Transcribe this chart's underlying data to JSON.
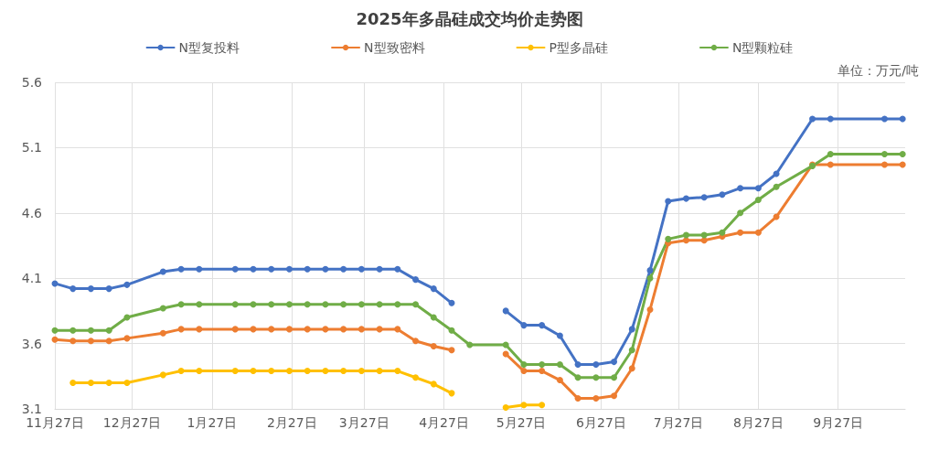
{
  "chart_data": {
    "type": "line",
    "title": "2025年多晶硅成交均价走势图",
    "ylabel": "单位：万元/吨",
    "x": [
      "2024-11-27",
      "2024-12-04",
      "2024-12-11",
      "2024-12-18",
      "2024-12-25",
      "2025-01-08",
      "2025-01-15",
      "2025-01-22",
      "2025-02-05",
      "2025-02-12",
      "2025-02-19",
      "2025-02-26",
      "2025-03-05",
      "2025-03-12",
      "2025-03-19",
      "2025-03-26",
      "2025-04-02",
      "2025-04-09",
      "2025-04-16",
      "2025-04-23",
      "2025-04-30",
      "2025-05-07",
      "2025-05-21",
      "2025-05-28",
      "2025-06-04",
      "2025-06-11",
      "2025-06-18",
      "2025-06-25",
      "2025-07-02",
      "2025-07-09",
      "2025-07-16",
      "2025-07-23",
      "2025-07-30",
      "2025-08-06",
      "2025-08-13",
      "2025-08-20",
      "2025-08-27",
      "2025-09-03",
      "2025-09-17",
      "2025-09-24",
      "2025-10-15",
      "2025-10-22"
    ],
    "series": [
      {
        "name": "N型复投料",
        "color": "#4472c4",
        "values": [
          4.06,
          4.02,
          4.02,
          4.02,
          4.05,
          4.15,
          4.17,
          4.17,
          4.17,
          4.17,
          4.17,
          4.17,
          4.17,
          4.17,
          4.17,
          4.17,
          4.17,
          4.17,
          4.09,
          4.02,
          3.91,
          null,
          3.85,
          3.74,
          3.74,
          3.66,
          3.44,
          3.44,
          3.46,
          3.71,
          4.16,
          4.69,
          4.71,
          4.72,
          4.74,
          4.79,
          4.79,
          4.9,
          5.32,
          5.32,
          5.32,
          5.32
        ]
      },
      {
        "name": "N型致密料",
        "color": "#ed7d31",
        "values": [
          3.63,
          3.62,
          3.62,
          3.62,
          3.64,
          3.68,
          3.71,
          3.71,
          3.71,
          3.71,
          3.71,
          3.71,
          3.71,
          3.71,
          3.71,
          3.71,
          3.71,
          3.71,
          3.62,
          3.58,
          3.55,
          null,
          3.52,
          3.39,
          3.39,
          3.32,
          3.18,
          3.18,
          3.2,
          3.41,
          3.86,
          4.37,
          4.39,
          4.39,
          4.42,
          4.45,
          4.45,
          4.57,
          4.97,
          4.97,
          4.97,
          4.97
        ]
      },
      {
        "name": "P型多晶硅",
        "color": "#ffc000",
        "values": [
          null,
          3.3,
          3.3,
          3.3,
          3.3,
          3.36,
          3.39,
          3.39,
          3.39,
          3.39,
          3.39,
          3.39,
          3.39,
          3.39,
          3.39,
          3.39,
          3.39,
          3.39,
          3.34,
          3.29,
          3.22,
          null,
          3.11,
          3.13,
          3.13,
          null,
          null,
          null,
          null,
          null,
          null,
          null,
          null,
          null,
          null,
          null,
          null,
          null,
          null,
          null,
          null,
          null
        ]
      },
      {
        "name": "N型颗粒硅",
        "color": "#70ad47",
        "values": [
          3.7,
          3.7,
          3.7,
          3.7,
          3.8,
          3.87,
          3.9,
          3.9,
          3.9,
          3.9,
          3.9,
          3.9,
          3.9,
          3.9,
          3.9,
          3.9,
          3.9,
          3.9,
          3.9,
          3.8,
          3.7,
          3.59,
          3.59,
          3.44,
          3.44,
          3.44,
          3.34,
          3.34,
          3.34,
          3.55,
          4.1,
          4.4,
          4.43,
          4.43,
          4.45,
          4.6,
          4.7,
          4.8,
          4.96,
          5.05,
          5.05,
          5.05
        ]
      }
    ],
    "xlim": [
      "2024-11-27",
      "2025-10-23"
    ],
    "xticks": [
      {
        "value": "2024-11-27",
        "label": "11月27日"
      },
      {
        "value": "2024-12-27",
        "label": "12月27日"
      },
      {
        "value": "2025-01-27",
        "label": "1月27日"
      },
      {
        "value": "2025-02-27",
        "label": "2月27日"
      },
      {
        "value": "2025-03-27",
        "label": "3月27日"
      },
      {
        "value": "2025-04-27",
        "label": "4月27日"
      },
      {
        "value": "2025-05-27",
        "label": "5月27日"
      },
      {
        "value": "2025-06-27",
        "label": "6月27日"
      },
      {
        "value": "2025-07-27",
        "label": "7月27日"
      },
      {
        "value": "2025-08-27",
        "label": "8月27日"
      },
      {
        "value": "2025-09-27",
        "label": "9月27日"
      }
    ],
    "ylim": [
      3.1,
      5.6
    ],
    "yticks": [
      3.1,
      3.6,
      4.1,
      4.6,
      5.1,
      5.6
    ],
    "grid": true,
    "legend": "top",
    "marker": "circle",
    "line_style": "solid"
  }
}
